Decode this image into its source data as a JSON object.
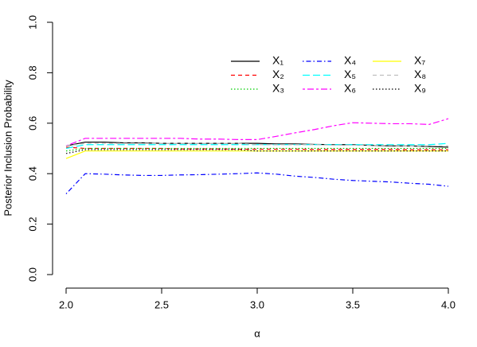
{
  "chart_data": {
    "type": "line",
    "xlabel": "α",
    "ylabel": "Posterior Inclusion Probability",
    "x": [
      2,
      2.1,
      2.2,
      2.3,
      2.4,
      2.5,
      2.6,
      2.7,
      2.8,
      2.9,
      3,
      3.1,
      3.2,
      3.3,
      3.4,
      3.5,
      3.6,
      3.7,
      3.8,
      3.9,
      4
    ],
    "xlim": [
      2,
      4
    ],
    "ylim": [
      0,
      1
    ],
    "xticks": [
      {
        "value": 2,
        "label": "2.0"
      },
      2.5,
      {
        "value": 3,
        "label": "3.0"
      },
      3.5,
      {
        "value": 4,
        "label": "4.0"
      }
    ],
    "yticks": [
      {
        "value": 0,
        "label": "0.0"
      },
      0.2,
      0.4,
      0.6,
      0.8,
      {
        "value": 1,
        "label": "1.0"
      }
    ],
    "legend": "top-right",
    "series": [
      {
        "name": "X₁",
        "color": "#000000",
        "dash": "solid",
        "values": [
          0.51,
          0.525,
          0.525,
          0.522,
          0.522,
          0.52,
          0.52,
          0.52,
          0.52,
          0.52,
          0.52,
          0.518,
          0.518,
          0.516,
          0.515,
          0.515,
          0.512,
          0.51,
          0.51,
          0.508,
          0.505
        ]
      },
      {
        "name": "X₂",
        "color": "#ff0000",
        "dash": "dashed",
        "values": [
          0.505,
          0.5,
          0.5,
          0.5,
          0.5,
          0.5,
          0.498,
          0.498,
          0.498,
          0.497,
          0.497,
          0.497,
          0.497,
          0.496,
          0.496,
          0.496,
          0.496,
          0.496,
          0.495,
          0.495,
          0.495
        ]
      },
      {
        "name": "X₃",
        "color": "#00cd00",
        "dash": "dotted",
        "values": [
          0.49,
          0.5,
          0.5,
          0.5,
          0.5,
          0.5,
          0.5,
          0.5,
          0.5,
          0.5,
          0.5,
          0.5,
          0.5,
          0.5,
          0.5,
          0.5,
          0.5,
          0.5,
          0.5,
          0.5,
          0.5
        ]
      },
      {
        "name": "X₄",
        "color": "#0000ff",
        "dash": "dotdash",
        "values": [
          0.32,
          0.4,
          0.398,
          0.395,
          0.393,
          0.393,
          0.395,
          0.396,
          0.398,
          0.4,
          0.403,
          0.398,
          0.39,
          0.385,
          0.378,
          0.373,
          0.37,
          0.367,
          0.362,
          0.358,
          0.35
        ]
      },
      {
        "name": "X₅",
        "color": "#00ffff",
        "dash": "longdash",
        "values": [
          0.5,
          0.515,
          0.515,
          0.515,
          0.515,
          0.515,
          0.515,
          0.515,
          0.515,
          0.515,
          0.515,
          0.515,
          0.515,
          0.515,
          0.515,
          0.515,
          0.515,
          0.515,
          0.515,
          0.515,
          0.52
        ]
      },
      {
        "name": "X₆",
        "color": "#ff00ff",
        "dash": "twodash",
        "values": [
          0.51,
          0.54,
          0.54,
          0.54,
          0.54,
          0.54,
          0.54,
          0.537,
          0.537,
          0.535,
          0.535,
          0.548,
          0.562,
          0.575,
          0.59,
          0.602,
          0.6,
          0.598,
          0.598,
          0.595,
          0.618
        ]
      },
      {
        "name": "X₇",
        "color": "#ffff00",
        "dash": "solid",
        "values": [
          0.46,
          0.49,
          0.49,
          0.49,
          0.49,
          0.49,
          0.49,
          0.49,
          0.49,
          0.49,
          0.49,
          0.49,
          0.49,
          0.49,
          0.49,
          0.49,
          0.49,
          0.49,
          0.49,
          0.49,
          0.49
        ]
      },
      {
        "name": "X₈",
        "color": "#bebebe",
        "dash": "dashed",
        "values": [
          0.51,
          0.52,
          0.52,
          0.52,
          0.52,
          0.52,
          0.52,
          0.52,
          0.52,
          0.52,
          0.515,
          0.515,
          0.515,
          0.515,
          0.513,
          0.513,
          0.512,
          0.512,
          0.51,
          0.51,
          0.51
        ]
      },
      {
        "name": "X₉",
        "color": "#000000",
        "dash": "dotted",
        "values": [
          0.48,
          0.495,
          0.495,
          0.495,
          0.495,
          0.495,
          0.495,
          0.495,
          0.495,
          0.495,
          0.49,
          0.49,
          0.49,
          0.49,
          0.49,
          0.49,
          0.49,
          0.49,
          0.49,
          0.49,
          0.49
        ]
      }
    ]
  }
}
